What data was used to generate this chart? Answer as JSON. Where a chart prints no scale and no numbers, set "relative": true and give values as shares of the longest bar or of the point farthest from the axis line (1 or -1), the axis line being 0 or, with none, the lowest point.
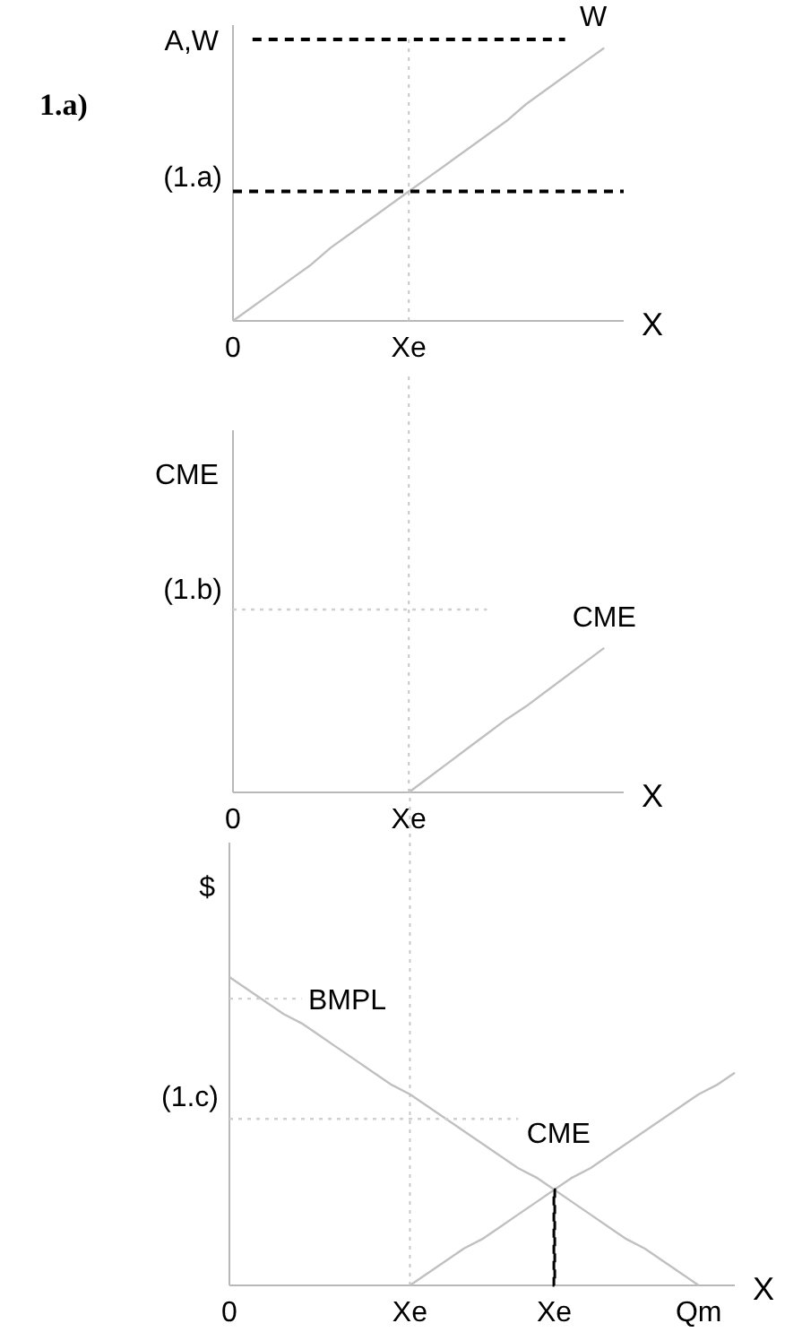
{
  "chart_data": [
    {
      "type": "line",
      "title": "1.a)",
      "ylabel": "A,W",
      "xlabel": "X",
      "relative": true,
      "categories": [
        "0",
        null,
        null,
        null,
        null,
        null,
        null,
        null,
        null,
        "Xe",
        null,
        null,
        null,
        null,
        null,
        null,
        null,
        null,
        null,
        null,
        null
      ],
      "annotations": [
        "(1.a)"
      ],
      "ref_lines": [
        {
          "axis": "x",
          "value": "Xe",
          "color": "#c8c8c8",
          "line_style": "dotted"
        }
      ],
      "series": [
        {
          "color": "#000000",
          "line_style": "dashed",
          "values": [
            null,
            1,
            1,
            1,
            1,
            1,
            1,
            1,
            1,
            1,
            1,
            1,
            1,
            1,
            1,
            1,
            1,
            1,
            null,
            null,
            null
          ]
        },
        {
          "name": "W",
          "color": "#c0c0c0",
          "line_style": "solid",
          "values": [
            0,
            0.05,
            0.1,
            0.15,
            0.2,
            0.26,
            0.31,
            0.36,
            0.41,
            0.46,
            0.51,
            0.56,
            0.61,
            0.66,
            0.71,
            0.77,
            0.82,
            0.87,
            0.92,
            0.97,
            null
          ]
        },
        {
          "color": "#000000",
          "line_style": "dashed",
          "values": [
            0.46,
            0.46,
            0.46,
            0.46,
            0.46,
            0.46,
            0.46,
            0.46,
            0.46,
            0.46,
            0.46,
            0.46,
            0.46,
            0.46,
            0.46,
            0.46,
            0.46,
            0.46,
            0.46,
            0.46,
            0.46
          ]
        }
      ]
    },
    {
      "type": "line",
      "ylabel": "CME",
      "xlabel": "X",
      "relative": true,
      "categories": [
        "0",
        null,
        null,
        null,
        null,
        null,
        null,
        null,
        null,
        "Xe",
        null,
        null,
        null,
        null,
        null,
        null,
        null,
        null,
        null,
        null,
        null
      ],
      "annotations": [
        "(1.b)"
      ],
      "ref_lines": [
        {
          "axis": "x",
          "value": "Xe",
          "color": "#c8c8c8",
          "line_style": "dotted"
        }
      ],
      "series": [
        {
          "name": "CME",
          "color": "#c0c0c0",
          "line_style": "solid",
          "values": [
            null,
            null,
            null,
            null,
            null,
            null,
            null,
            null,
            null,
            0,
            0.08,
            0.16,
            0.24,
            0.32,
            0.4,
            0.47,
            0.55,
            0.63,
            0.71,
            0.79,
            null
          ]
        },
        {
          "color": "#d0d0d0",
          "line_style": "dotted",
          "values": [
            1,
            1,
            1,
            1,
            1,
            1,
            1,
            1,
            1,
            1,
            1,
            1,
            1,
            1,
            null,
            null,
            null,
            null,
            null,
            null,
            null
          ]
        }
      ]
    },
    {
      "type": "line",
      "ylabel": "$",
      "xlabel": "X",
      "relative": true,
      "categories": [
        "0",
        null,
        null,
        null,
        null,
        null,
        null,
        null,
        null,
        null,
        "Xe",
        null,
        null,
        null,
        null,
        null,
        null,
        null,
        "Xe",
        null,
        null,
        null,
        null,
        null,
        null,
        null,
        "Qm",
        null,
        null
      ],
      "annotations": [
        "(1.c)"
      ],
      "ref_lines": [
        {
          "axis": "x",
          "value": "Xe",
          "color": "#c8c8c8",
          "line_style": "dotted"
        }
      ],
      "series": [
        {
          "name": "BMPL",
          "color": "#c0c0c0",
          "line_style": "solid",
          "values": [
            1,
            0.96,
            0.92,
            0.88,
            0.85,
            0.81,
            0.77,
            0.73,
            0.69,
            0.65,
            0.62,
            0.58,
            0.54,
            0.5,
            0.46,
            0.42,
            0.38,
            0.35,
            0.31,
            0.27,
            0.23,
            0.19,
            0.15,
            0.12,
            0.08,
            0.04,
            0,
            null,
            null
          ]
        },
        {
          "name": "CME",
          "color": "#c0c0c0",
          "line_style": "solid",
          "values": [
            null,
            null,
            null,
            null,
            null,
            null,
            null,
            null,
            null,
            null,
            0,
            0.04,
            0.08,
            0.12,
            0.15,
            0.19,
            0.23,
            0.27,
            0.31,
            0.35,
            0.38,
            0.42,
            0.46,
            0.5,
            0.54,
            0.58,
            0.62,
            0.65,
            0.69
          ]
        },
        {
          "type": "bar",
          "color": "#000000",
          "line_style": "dashed",
          "values": [
            null,
            null,
            null,
            null,
            null,
            null,
            null,
            null,
            null,
            null,
            null,
            null,
            null,
            null,
            null,
            null,
            null,
            null,
            0.31,
            null,
            null,
            null,
            null,
            null,
            null,
            null,
            null,
            null,
            null
          ]
        },
        {
          "color": "#d0d0d0",
          "line_style": "dotted",
          "values": [
            0.54,
            0.54,
            0.54,
            0.54,
            0.54,
            0.54,
            0.54,
            0.54,
            0.54,
            0.54,
            0.54,
            0.54,
            0.54,
            0.54,
            0.54,
            0.54,
            0.54,
            null,
            null,
            null,
            null,
            null,
            null,
            null,
            null,
            null,
            null,
            null,
            null
          ]
        },
        {
          "color": "#d0d0d0",
          "line_style": "dotted",
          "values": [
            0.93,
            0.93,
            0.93,
            0.93,
            0.93,
            null,
            null,
            null,
            null,
            null,
            null,
            null,
            null,
            null,
            null,
            null,
            null,
            null,
            null,
            null,
            null,
            null,
            null,
            null,
            null,
            null,
            null,
            null,
            null
          ]
        }
      ]
    }
  ]
}
